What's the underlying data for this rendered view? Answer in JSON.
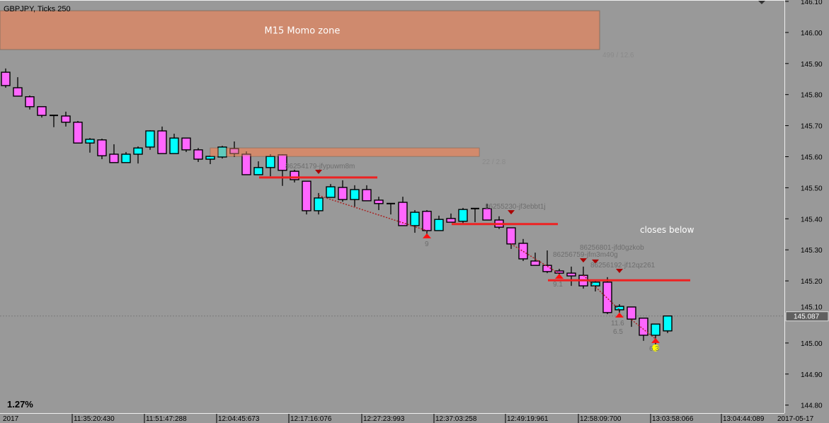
{
  "header": {
    "title": "GBPJPY, Ticks 250"
  },
  "footer": {
    "percent": "1.27%"
  },
  "colors": {
    "background": "#999999",
    "bull": "#00ffff",
    "bear": "#ff66ff",
    "zone": "#d4896a",
    "level_line": "#ee2222",
    "trade_line": "#aa2222",
    "arrow_up": "#ff1111",
    "arrow_down": "#aa0000",
    "axis_text": "#000000",
    "label_text": "#6e6e6e"
  },
  "chart_data": {
    "type": "candlestick",
    "symbol": "GBPJPY",
    "ylim": [
      144.78,
      146.1
    ],
    "y_ticks": [
      "146.10",
      "146.00",
      "145.90",
      "145.80",
      "145.70",
      "145.60",
      "145.50",
      "145.40",
      "145.30",
      "145.20",
      "145.10",
      "145.00",
      "144.90",
      "144.80"
    ],
    "x_ticks": [
      "2017",
      "11:35:20:430",
      "11:51:47:288",
      "12:04:45:673",
      "12:17:16:076",
      "12:27:23:993",
      "12:37:03:258",
      "12:49:19:961",
      "12:58:09:700",
      "13:03:58:066",
      "13:04:44:089"
    ],
    "x_end_label": "2017-05-17",
    "current_price": "145.087",
    "candles": [
      [
        145.872,
        145.884,
        145.822,
        145.829
      ],
      [
        145.822,
        145.856,
        145.795,
        145.795
      ],
      [
        145.793,
        145.797,
        145.752,
        145.761
      ],
      [
        145.761,
        145.761,
        145.726,
        145.733
      ],
      [
        145.733,
        145.733,
        145.695,
        145.733
      ],
      [
        145.731,
        145.745,
        145.697,
        145.711
      ],
      [
        145.711,
        145.715,
        145.644,
        145.644
      ],
      [
        145.644,
        145.66,
        145.613,
        145.656
      ],
      [
        145.654,
        145.658,
        145.592,
        145.603
      ],
      [
        145.608,
        145.64,
        145.581,
        145.581
      ],
      [
        145.581,
        145.615,
        145.581,
        145.608
      ],
      [
        145.608,
        145.633,
        145.578,
        145.628
      ],
      [
        145.631,
        145.685,
        145.622,
        145.683
      ],
      [
        145.683,
        145.697,
        145.61,
        145.61
      ],
      [
        145.61,
        145.674,
        145.61,
        145.66
      ],
      [
        145.66,
        145.66,
        145.615,
        145.622
      ],
      [
        145.622,
        145.628,
        145.583,
        145.592
      ],
      [
        145.592,
        145.603,
        145.576,
        145.601
      ],
      [
        145.599,
        145.635,
        145.594,
        145.631
      ],
      [
        145.626,
        145.649,
        145.599,
        145.61
      ],
      [
        145.608,
        145.617,
        145.542,
        145.542
      ],
      [
        145.542,
        145.585,
        145.542,
        145.565
      ],
      [
        145.565,
        145.608,
        145.537,
        145.601
      ],
      [
        145.606,
        145.608,
        145.506,
        145.556
      ],
      [
        145.553,
        145.558,
        145.517,
        145.526
      ],
      [
        145.521,
        145.521,
        145.414,
        145.426
      ],
      [
        145.426,
        145.483,
        145.414,
        145.467
      ],
      [
        145.469,
        145.512,
        145.469,
        145.503
      ],
      [
        145.501,
        145.524,
        145.455,
        145.462
      ],
      [
        145.462,
        145.508,
        145.439,
        145.494
      ],
      [
        145.494,
        145.508,
        145.458,
        145.458
      ],
      [
        145.46,
        145.471,
        145.428,
        145.449
      ],
      [
        145.449,
        145.449,
        145.414,
        145.449
      ],
      [
        145.453,
        145.471,
        145.378,
        145.378
      ],
      [
        145.378,
        145.428,
        145.355,
        145.421
      ],
      [
        145.424,
        145.428,
        145.346,
        145.362
      ],
      [
        145.362,
        145.41,
        145.362,
        145.398
      ],
      [
        145.401,
        145.417,
        145.389,
        145.389
      ],
      [
        145.392,
        145.435,
        145.385,
        145.43
      ],
      [
        145.433,
        145.433,
        145.389,
        145.433
      ],
      [
        145.433,
        145.449,
        145.396,
        145.396
      ],
      [
        145.396,
        145.408,
        145.367,
        145.373
      ],
      [
        145.371,
        145.371,
        145.303,
        145.319
      ],
      [
        145.321,
        145.335,
        145.264,
        145.271
      ],
      [
        145.264,
        145.291,
        145.25,
        145.25
      ],
      [
        145.25,
        145.298,
        145.225,
        145.23
      ],
      [
        145.232,
        145.239,
        145.221,
        145.225
      ],
      [
        145.225,
        145.246,
        145.184,
        145.216
      ],
      [
        145.218,
        145.246,
        145.175,
        145.184
      ],
      [
        145.184,
        145.203,
        145.166,
        145.196
      ],
      [
        145.196,
        145.212,
        145.093,
        145.098
      ],
      [
        145.107,
        145.125,
        145.098,
        145.118
      ],
      [
        145.116,
        145.116,
        145.052,
        145.077
      ],
      [
        145.08,
        145.08,
        145.007,
        145.025
      ],
      [
        145.025,
        145.061,
        144.991,
        145.061
      ],
      [
        145.039,
        145.087,
        145.032,
        145.087
      ]
    ],
    "zones": [
      {
        "label": "M15 Momo zone",
        "stats": "499 / 12.6",
        "from": -1,
        "to": 49.0,
        "top": 146.07,
        "bottom": 145.945
      },
      {
        "label": "",
        "stats": "22 / 2.8",
        "from": 17,
        "to": 39,
        "top": 145.628,
        "bottom": 145.601
      }
    ],
    "levels": [
      {
        "price": 145.533,
        "from": 21,
        "to": 30
      },
      {
        "price": 145.383,
        "from": 37,
        "to": 45
      },
      {
        "price": 145.202,
        "from": 45,
        "to": 56
      }
    ],
    "trade_lines": [
      {
        "from": [
          26,
          145.475
        ],
        "to": [
          35,
          145.362
        ]
      },
      {
        "from": [
          42,
          145.319
        ],
        "to": [
          46,
          145.223
        ]
      },
      {
        "from": [
          48,
          145.218
        ],
        "to": [
          51,
          145.107
        ]
      },
      {
        "from": [
          52,
          145.075
        ],
        "to": [
          54,
          145.013
        ]
      }
    ],
    "sell_markers": [
      {
        "candle": 26,
        "price": 145.551,
        "label": "86254179-jfypuwm8m"
      },
      {
        "candle": 42,
        "price": 145.421,
        "label": "86255230-jf3ebbt1j"
      },
      {
        "candle": 48,
        "price": 145.266,
        "label": "86256759-jfm3m40g"
      },
      {
        "candle": 49,
        "price": 145.262,
        "label": "86256801-jfd0gzkob"
      },
      {
        "candle": 51,
        "price": 145.232,
        "label": "86256192-jf12qz261"
      }
    ],
    "buy_markers": [
      {
        "candle": 35,
        "price": 145.344,
        "labels": [
          "9"
        ]
      },
      {
        "candle": 46,
        "price": 145.214,
        "labels": [
          "9.1"
        ]
      },
      {
        "candle": 51,
        "price": 145.089,
        "labels": [
          "11.6",
          "6.5"
        ]
      },
      {
        "candle": 54,
        "price": 145.007,
        "labels": [
          "6.3"
        ],
        "highlight": true
      }
    ],
    "notes": [
      {
        "text": "closes below",
        "candle": 53,
        "price": 145.364
      }
    ]
  }
}
